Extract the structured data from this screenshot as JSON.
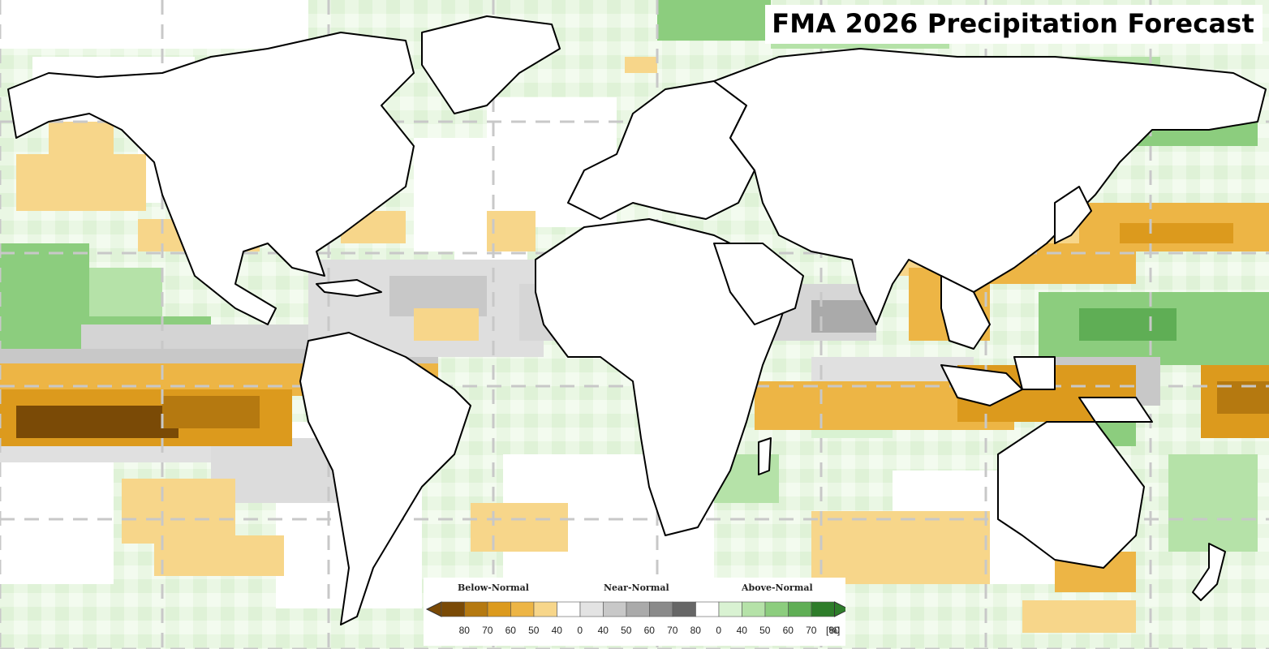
{
  "title": "FMA 2026 Precipitation Forecast",
  "legend": {
    "categories": [
      {
        "label": "Below-Normal"
      },
      {
        "label": "Near-Normal"
      },
      {
        "label": "Above-Normal"
      }
    ],
    "tick_labels": [
      "80",
      "70",
      "60",
      "50",
      "40",
      "0",
      "40",
      "50",
      "60",
      "70",
      "80",
      "0",
      "40",
      "50",
      "60",
      "70",
      "80"
    ],
    "unit": "[%]",
    "colors": {
      "below": [
        "#7a4a06",
        "#b57910",
        "#dc9a1d",
        "#edb545",
        "#f7d68a"
      ],
      "near": [
        "#e3e3e3",
        "#c8c8c8",
        "#aaaaaa",
        "#8a8a8a",
        "#666666"
      ],
      "above": [
        "#d9f2d2",
        "#b5e2a8",
        "#8ccd7e",
        "#5fae55",
        "#2e7d2a"
      ],
      "neutral": "#ffffff"
    }
  },
  "map": {
    "projection": "equirectangular",
    "gridlines": "dashed",
    "land_outline_color": "#000000"
  }
}
